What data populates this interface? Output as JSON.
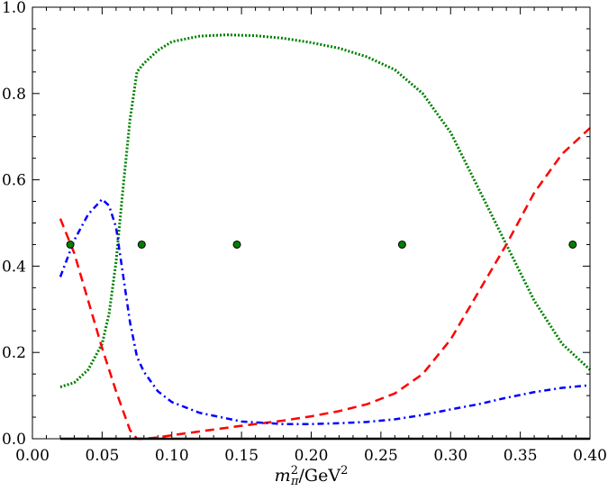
{
  "chart_data": {
    "type": "line",
    "xlabel": "m²π/GeV²",
    "xlabel_parts": {
      "base": "m",
      "sup": "2",
      "sub": "π",
      "unit": "/GeV",
      "unit_sup": "2"
    },
    "ylabel": "",
    "xlim": [
      0.0,
      0.4
    ],
    "ylim": [
      0.0,
      1.0
    ],
    "xticks": [
      "0.00",
      "0.05",
      "0.10",
      "0.15",
      "0.20",
      "0.25",
      "0.30",
      "0.35",
      "0.40"
    ],
    "yticks": [
      "0.0",
      "0.2",
      "0.4",
      "0.6",
      "0.8",
      "1.0"
    ],
    "grid": false,
    "legend": "none",
    "series": [
      {
        "style": "dotted",
        "color": "#008000",
        "x": [
          0.02,
          0.03,
          0.04,
          0.05,
          0.055,
          0.06,
          0.065,
          0.07,
          0.075,
          0.08,
          0.09,
          0.1,
          0.12,
          0.14,
          0.16,
          0.18,
          0.2,
          0.22,
          0.24,
          0.26,
          0.28,
          0.3,
          0.32,
          0.34,
          0.36,
          0.38,
          0.4
        ],
        "y": [
          0.12,
          0.13,
          0.16,
          0.22,
          0.29,
          0.41,
          0.58,
          0.74,
          0.85,
          0.87,
          0.9,
          0.92,
          0.933,
          0.936,
          0.934,
          0.928,
          0.918,
          0.905,
          0.885,
          0.855,
          0.8,
          0.71,
          0.58,
          0.45,
          0.32,
          0.22,
          0.16
        ]
      },
      {
        "style": "dashed",
        "color": "#ff0000",
        "x": [
          0.02,
          0.03,
          0.04,
          0.05,
          0.06,
          0.07,
          0.075,
          0.08,
          0.09,
          0.1,
          0.12,
          0.15,
          0.18,
          0.2,
          0.22,
          0.24,
          0.26,
          0.28,
          0.3,
          0.32,
          0.34,
          0.36,
          0.38,
          0.4
        ],
        "y": [
          0.51,
          0.43,
          0.32,
          0.21,
          0.11,
          0.02,
          0.0,
          0.0,
          0.003,
          0.008,
          0.017,
          0.03,
          0.042,
          0.052,
          0.064,
          0.08,
          0.105,
          0.15,
          0.23,
          0.34,
          0.45,
          0.57,
          0.66,
          0.72
        ]
      },
      {
        "style": "dash-dot",
        "color": "#0000ff",
        "x": [
          0.02,
          0.03,
          0.04,
          0.05,
          0.055,
          0.06,
          0.065,
          0.07,
          0.075,
          0.08,
          0.09,
          0.1,
          0.12,
          0.15,
          0.18,
          0.2,
          0.22,
          0.24,
          0.26,
          0.28,
          0.3,
          0.32,
          0.34,
          0.36,
          0.38,
          0.4
        ],
        "y": [
          0.375,
          0.46,
          0.52,
          0.555,
          0.54,
          0.49,
          0.38,
          0.27,
          0.19,
          0.155,
          0.11,
          0.085,
          0.06,
          0.04,
          0.034,
          0.034,
          0.036,
          0.039,
          0.045,
          0.055,
          0.068,
          0.08,
          0.095,
          0.108,
          0.118,
          0.124
        ]
      },
      {
        "style": "solid",
        "color": "#000000",
        "x": [
          0.02,
          0.4
        ],
        "y": [
          0.0,
          0.0
        ]
      },
      {
        "style": "markers",
        "color": "#008000",
        "x": [
          0.0272,
          0.0784,
          0.1467,
          0.2652,
          0.3876
        ],
        "y": [
          0.45,
          0.45,
          0.45,
          0.45,
          0.45
        ]
      }
    ]
  }
}
